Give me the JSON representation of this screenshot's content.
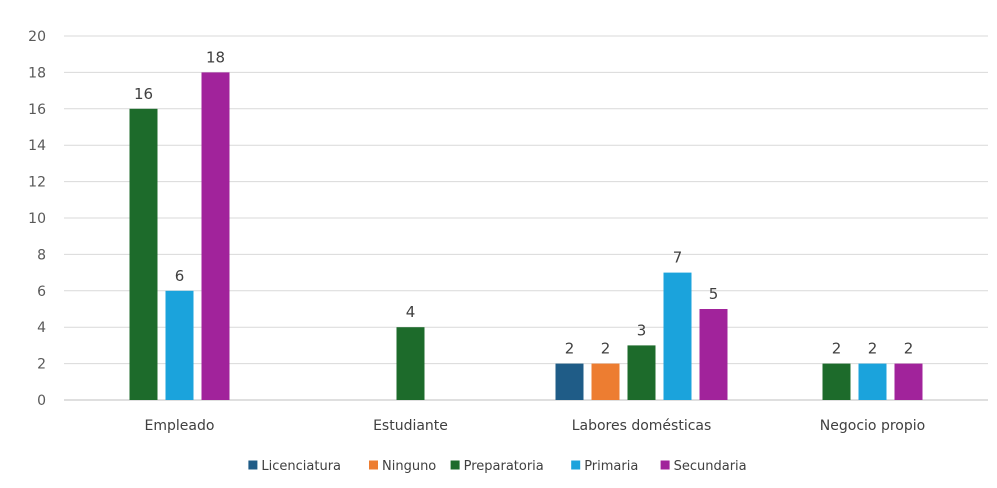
{
  "chart_data": {
    "type": "bar",
    "categories": [
      "Empleado",
      "Estudiante",
      "Labores domésticas",
      "Negocio propio"
    ],
    "series": [
      {
        "name": "Licenciatura",
        "color": "#1f5c87",
        "values": [
          null,
          null,
          2,
          null
        ]
      },
      {
        "name": "Ninguno",
        "color": "#ed7d31",
        "values": [
          null,
          null,
          2,
          null
        ]
      },
      {
        "name": "Preparatoria",
        "color": "#1d6b2b",
        "values": [
          16,
          4,
          3,
          2
        ]
      },
      {
        "name": "Primaria",
        "color": "#1ba3dc",
        "values": [
          6,
          null,
          7,
          2
        ]
      },
      {
        "name": "Secundaria",
        "color": "#a1239b",
        "values": [
          18,
          null,
          5,
          2
        ]
      }
    ],
    "ylim": [
      0,
      20
    ],
    "yticks": [
      0,
      2,
      4,
      6,
      8,
      10,
      12,
      14,
      16,
      18,
      20
    ],
    "grid": true,
    "legend": "bottom"
  }
}
